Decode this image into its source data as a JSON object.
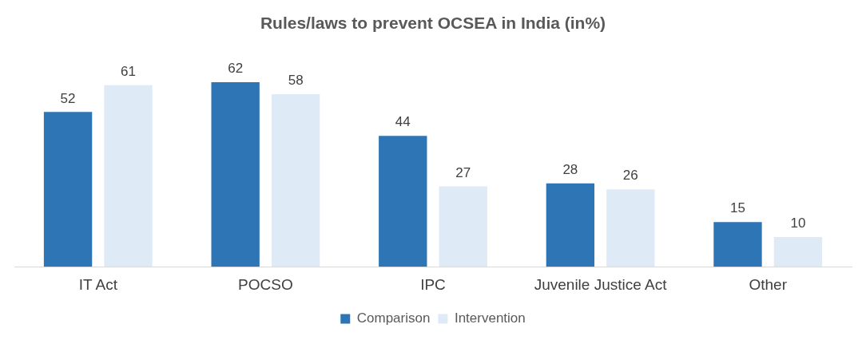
{
  "chart_data": {
    "type": "bar",
    "title": "Rules/laws to prevent OCSEA in India (in%)",
    "categories": [
      "IT Act",
      "POCSO",
      "IPC",
      "Juvenile Justice Act",
      "Other"
    ],
    "series": [
      {
        "name": "Comparison",
        "color": "#2e75b6",
        "values": [
          52,
          62,
          44,
          28,
          15
        ]
      },
      {
        "name": "Intervention",
        "color": "#deebf7",
        "values": [
          61,
          58,
          27,
          26,
          10
        ]
      }
    ],
    "data_labels": true,
    "legend": "bottom",
    "grid": false,
    "tick_labels": "x"
  }
}
